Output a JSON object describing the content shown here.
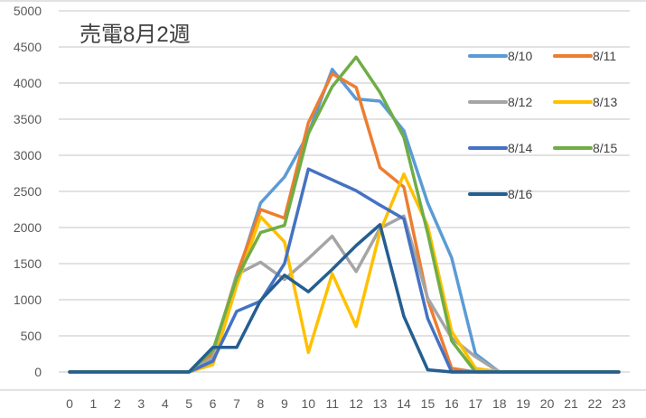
{
  "chart_data": {
    "type": "line",
    "title": "売電8月2週",
    "xlabel": "",
    "ylabel": "",
    "x": [
      0,
      1,
      2,
      3,
      4,
      5,
      6,
      7,
      8,
      9,
      10,
      11,
      12,
      13,
      14,
      15,
      16,
      17,
      18,
      19,
      20,
      21,
      22,
      23
    ],
    "categories": [
      "0",
      "1",
      "2",
      "3",
      "4",
      "5",
      "6",
      "7",
      "8",
      "9",
      "10",
      "11",
      "12",
      "13",
      "14",
      "15",
      "16",
      "17",
      "18",
      "19",
      "20",
      "21",
      "22",
      "23"
    ],
    "ylim": [
      0,
      5000
    ],
    "yticks": [
      0,
      500,
      1000,
      1500,
      2000,
      2500,
      3000,
      3500,
      4000,
      4500,
      5000
    ],
    "grid": true,
    "legend_position": "right-top",
    "series": [
      {
        "name": "8/10",
        "color": "#5B9BD5",
        "values": [
          0,
          0,
          0,
          0,
          0,
          0,
          200,
          1300,
          2340,
          2700,
          3300,
          4190,
          3780,
          3750,
          3340,
          2340,
          1580,
          250,
          0,
          0,
          0,
          0,
          0,
          0
        ]
      },
      {
        "name": "8/11",
        "color": "#ED7D31",
        "values": [
          0,
          0,
          0,
          0,
          0,
          0,
          250,
          1350,
          2250,
          2130,
          3450,
          4130,
          3940,
          2830,
          2560,
          1000,
          50,
          0,
          0,
          0,
          0,
          0,
          0,
          0
        ]
      },
      {
        "name": "8/12",
        "color": "#A5A5A5",
        "values": [
          0,
          0,
          0,
          0,
          0,
          0,
          200,
          1350,
          1520,
          1280,
          1570,
          1880,
          1390,
          1990,
          2160,
          1020,
          470,
          210,
          0,
          0,
          0,
          0,
          0,
          0
        ]
      },
      {
        "name": "8/13",
        "color": "#FFC000",
        "values": [
          0,
          0,
          0,
          0,
          0,
          0,
          100,
          1200,
          2150,
          1800,
          270,
          1360,
          630,
          1940,
          2740,
          2020,
          560,
          50,
          0,
          0,
          0,
          0,
          0,
          0
        ]
      },
      {
        "name": "8/14",
        "color": "#4472C4",
        "values": [
          0,
          0,
          0,
          0,
          0,
          0,
          150,
          840,
          980,
          1500,
          2810,
          2660,
          2510,
          2310,
          2120,
          740,
          0,
          0,
          0,
          0,
          0,
          0,
          0,
          0
        ]
      },
      {
        "name": "8/15",
        "color": "#70AD47",
        "values": [
          0,
          0,
          0,
          0,
          0,
          0,
          300,
          1300,
          1930,
          2030,
          3300,
          3950,
          4360,
          3870,
          3250,
          1920,
          430,
          0,
          0,
          0,
          0,
          0,
          0,
          0
        ]
      },
      {
        "name": "8/16",
        "color": "#255E91",
        "values": [
          0,
          0,
          0,
          0,
          0,
          0,
          340,
          340,
          990,
          1340,
          1110,
          1420,
          1750,
          2040,
          770,
          30,
          0,
          0,
          0,
          0,
          0,
          0,
          0,
          0
        ]
      }
    ]
  }
}
